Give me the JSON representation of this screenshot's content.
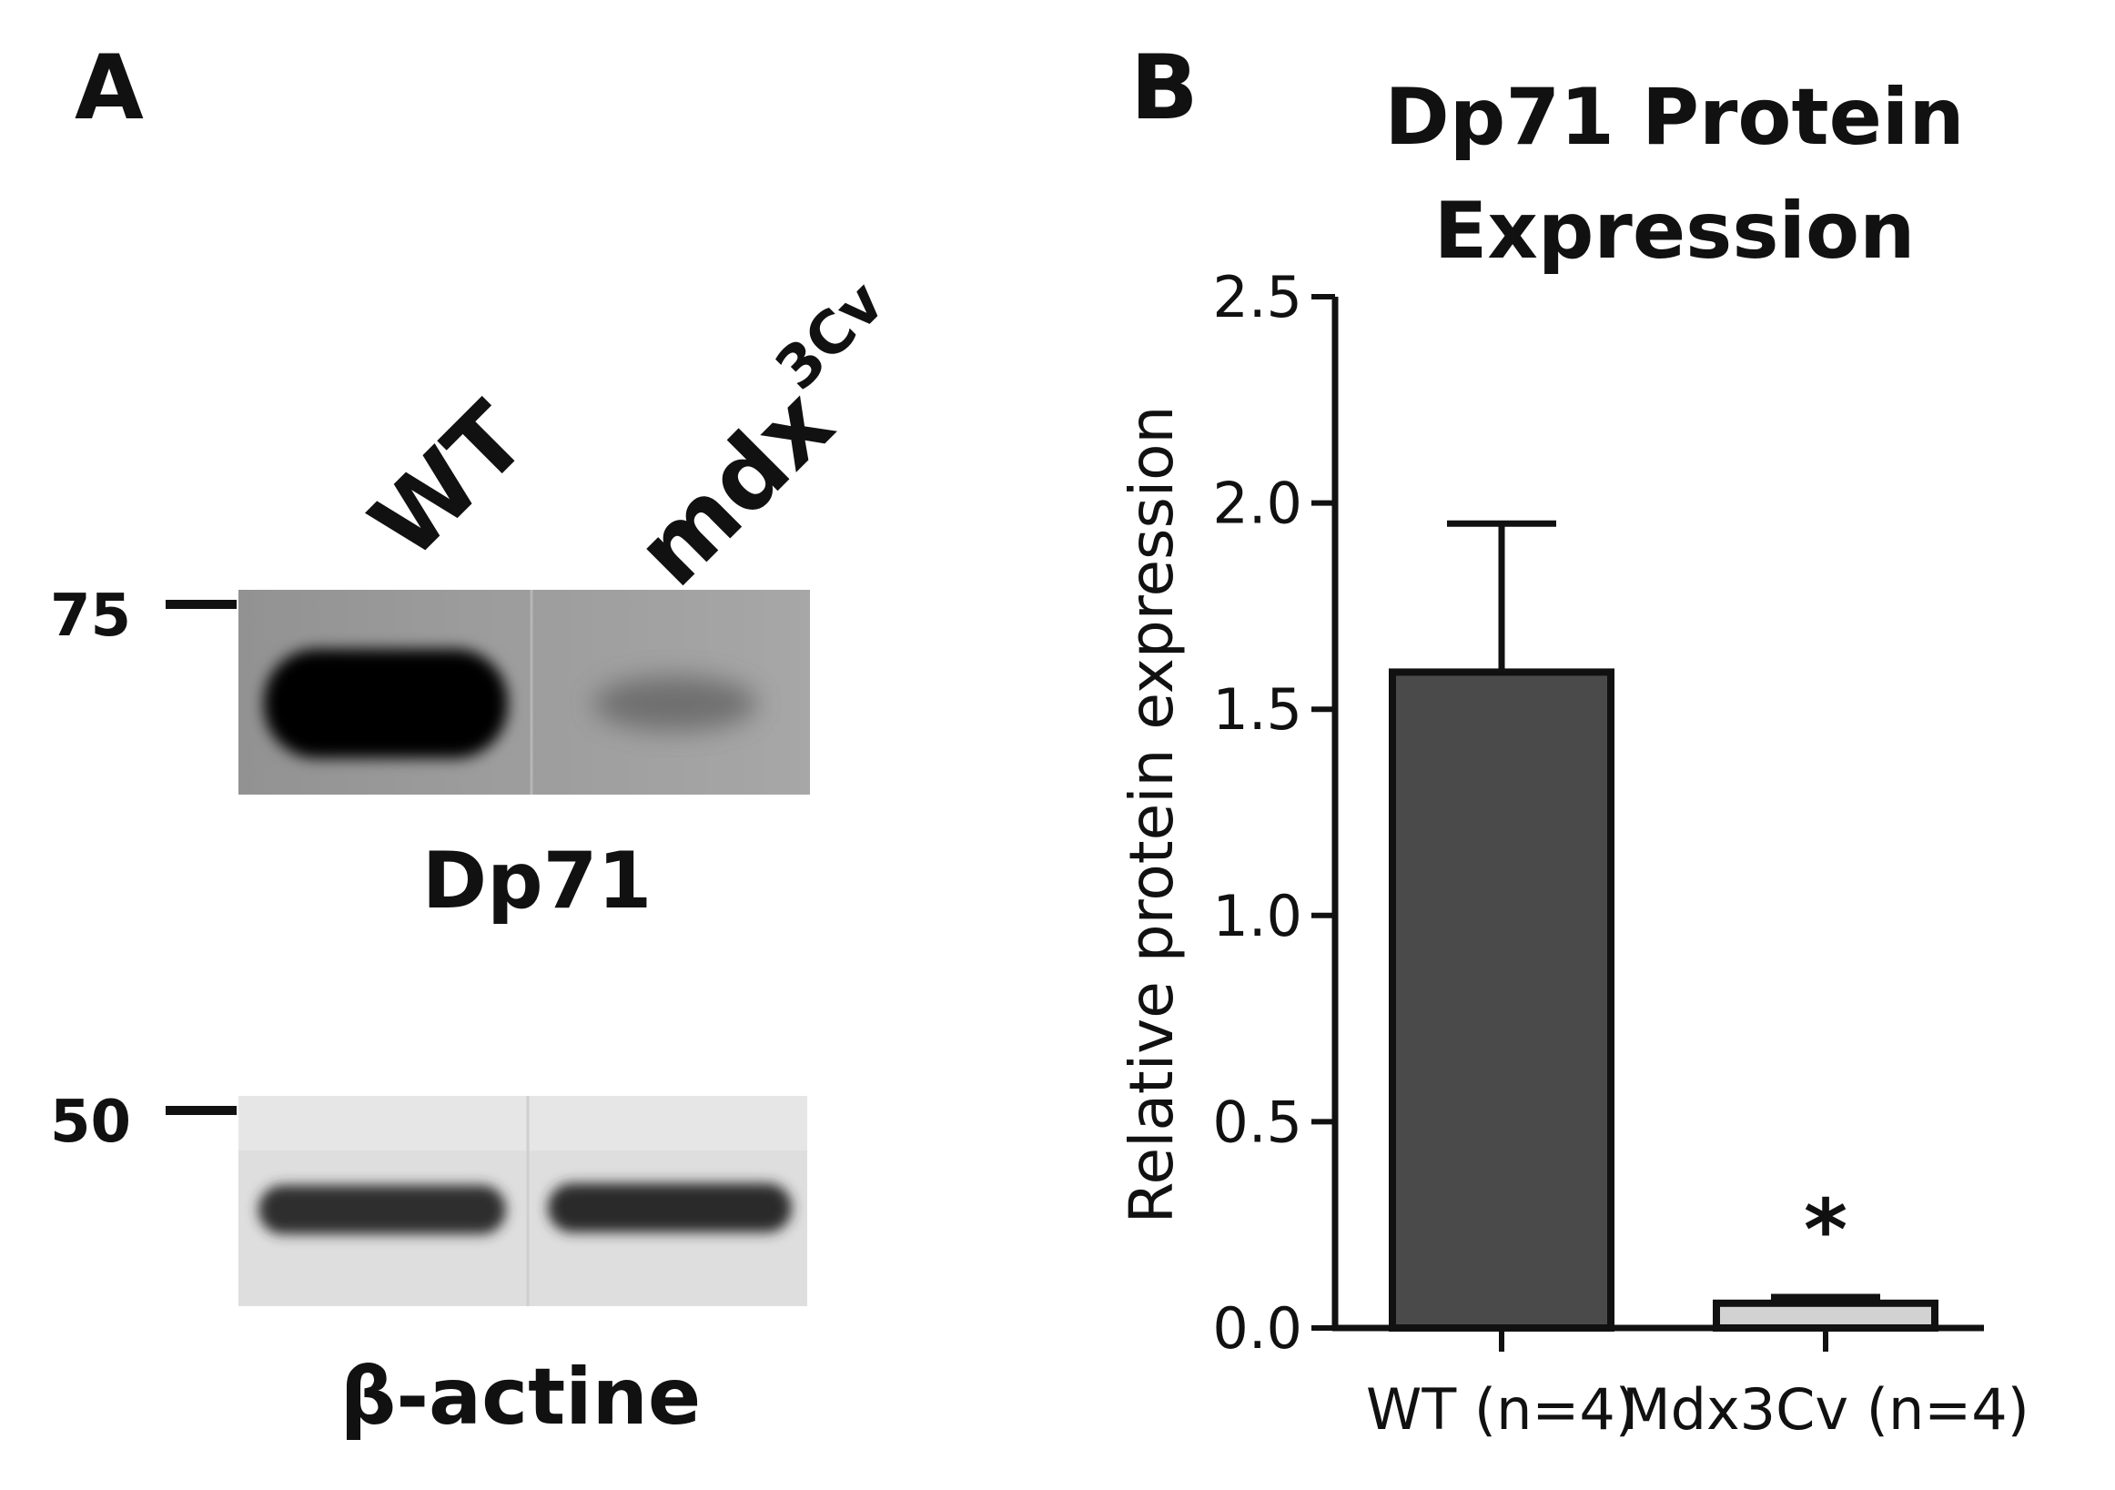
{
  "panel_a": {
    "letter": "A",
    "lanes": [
      {
        "label": "WT",
        "superscript": ""
      },
      {
        "label": "mdx",
        "superscript": "3Cv"
      }
    ],
    "blots": [
      {
        "name": "Dp71",
        "marker": "75",
        "band_intensity": [
          1.0,
          0.25
        ]
      },
      {
        "name": "β-actine",
        "marker": "50",
        "band_intensity": [
          0.8,
          0.8
        ]
      }
    ]
  },
  "panel_b": {
    "letter": "B"
  },
  "chart_data": {
    "type": "bar",
    "title_lines": [
      "Dp71 Protein",
      "Expression"
    ],
    "ylabel": "Relative protein expression",
    "xlabel": "",
    "categories": [
      "WT (n=4)",
      "Mdx3Cv (n=4)"
    ],
    "series": [
      {
        "values": [
          1.59,
          0.06
        ],
        "errors": [
          0.36,
          0.015
        ],
        "colors": [
          "#4a4a4a",
          "#d2d2d2"
        ]
      }
    ],
    "ylim": [
      0.0,
      2.5
    ],
    "yticks": [
      "0.0",
      "0.5",
      "1.0",
      "1.5",
      "2.0",
      "2.5"
    ],
    "annotations": [
      {
        "category": "Mdx3Cv (n=4)",
        "text": "*"
      }
    ],
    "grid": false,
    "legend": "none"
  }
}
